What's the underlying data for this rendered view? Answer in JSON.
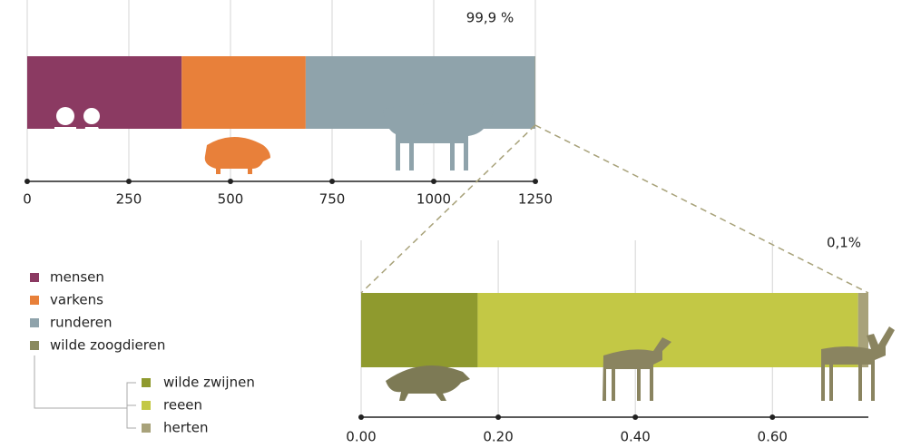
{
  "chart_data": [
    {
      "type": "stacked-bar",
      "orientation": "horizontal",
      "annotation": "99,9 %",
      "categories": [
        null
      ],
      "series": [
        {
          "name": "mensen",
          "color": "#8b3a62",
          "values": [
            380
          ]
        },
        {
          "name": "varkens",
          "color": "#e8803a",
          "values": [
            305
          ]
        },
        {
          "name": "runderen",
          "color": "#8fa3ab",
          "values": [
            564
          ]
        },
        {
          "name": "wilde zoogdieren",
          "color": "#8a8a5e",
          "values": [
            0.74
          ]
        }
      ],
      "xlim": [
        0,
        1250
      ],
      "xticks": [
        0,
        250,
        500,
        750,
        1000,
        1250
      ],
      "grid": true
    },
    {
      "type": "stacked-bar",
      "orientation": "horizontal",
      "annotation": "0,1%",
      "categories": [
        null
      ],
      "series": [
        {
          "name": "wilde zwijnen",
          "color": "#8f9a2e",
          "values": [
            0.17
          ]
        },
        {
          "name": "reeen",
          "color": "#c3c845",
          "values": [
            0.555
          ]
        },
        {
          "name": "herten",
          "color": "#a8a27a",
          "values": [
            0.015
          ]
        }
      ],
      "xlim": [
        0,
        0.74
      ],
      "xticks": [
        {
          "value": 0,
          "label": "0.00"
        },
        {
          "value": 0.2,
          "label": "0.20"
        },
        {
          "value": 0.4,
          "label": "0.40"
        },
        {
          "value": 0.6,
          "label": "0.60"
        }
      ],
      "grid": true
    }
  ]
}
